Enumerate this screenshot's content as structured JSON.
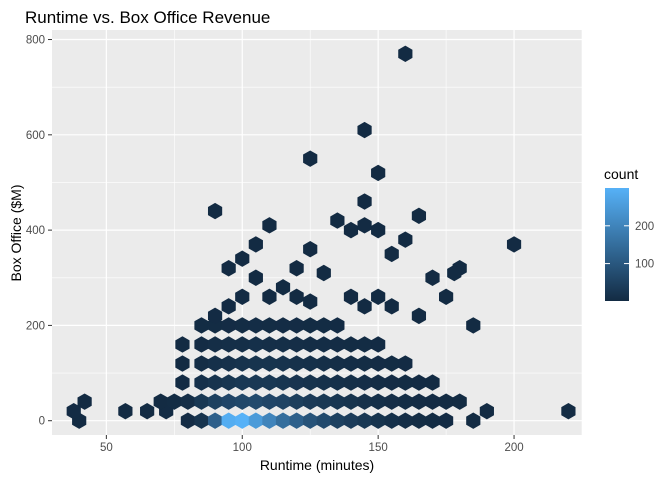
{
  "chart_data": {
    "type": "hexbin",
    "title": "Runtime vs. Box Office Revenue",
    "xlabel": "Runtime (minutes)",
    "ylabel": "Box Office ($M)",
    "xlim": [
      30,
      225
    ],
    "ylim": [
      -30,
      820
    ],
    "x_ticks": [
      50,
      100,
      150,
      200
    ],
    "y_ticks": [
      0,
      200,
      400,
      600,
      800
    ],
    "grid": true,
    "panel_background": "#EBEBEB",
    "grid_color": "#FFFFFF",
    "legend": {
      "title": "count",
      "position": "right",
      "breaks": [
        100,
        200
      ],
      "range": [
        1,
        300
      ],
      "low_color": "#132B43",
      "high_color": "#56B1F7"
    },
    "points": [
      [
        40,
        0,
        1
      ],
      [
        38,
        20,
        2
      ],
      [
        42,
        40,
        1
      ],
      [
        57,
        20,
        1
      ],
      [
        65,
        20,
        1
      ],
      [
        72,
        20,
        2
      ],
      [
        70,
        40,
        1
      ],
      [
        75,
        40,
        3
      ],
      [
        80,
        0,
        4
      ],
      [
        80,
        40,
        8
      ],
      [
        78,
        80,
        2
      ],
      [
        78,
        120,
        1
      ],
      [
        78,
        160,
        1
      ],
      [
        85,
        0,
        20
      ],
      [
        85,
        40,
        30
      ],
      [
        85,
        80,
        12
      ],
      [
        85,
        120,
        6
      ],
      [
        85,
        160,
        4
      ],
      [
        85,
        200,
        3
      ],
      [
        90,
        0,
        120
      ],
      [
        90,
        40,
        50
      ],
      [
        90,
        80,
        20
      ],
      [
        90,
        120,
        12
      ],
      [
        90,
        160,
        8
      ],
      [
        90,
        200,
        3
      ],
      [
        95,
        0,
        290
      ],
      [
        95,
        40,
        60
      ],
      [
        95,
        80,
        25
      ],
      [
        95,
        120,
        15
      ],
      [
        95,
        160,
        10
      ],
      [
        95,
        200,
        4
      ],
      [
        100,
        0,
        300
      ],
      [
        100,
        40,
        65
      ],
      [
        100,
        80,
        30
      ],
      [
        100,
        120,
        18
      ],
      [
        100,
        160,
        10
      ],
      [
        100,
        200,
        5
      ],
      [
        105,
        0,
        250
      ],
      [
        105,
        40,
        70
      ],
      [
        105,
        80,
        30
      ],
      [
        105,
        120,
        20
      ],
      [
        105,
        160,
        12
      ],
      [
        105,
        200,
        6
      ],
      [
        110,
        0,
        200
      ],
      [
        110,
        40,
        60
      ],
      [
        110,
        80,
        30
      ],
      [
        110,
        120,
        20
      ],
      [
        110,
        160,
        10
      ],
      [
        110,
        200,
        5
      ],
      [
        115,
        0,
        150
      ],
      [
        115,
        40,
        55
      ],
      [
        115,
        80,
        25
      ],
      [
        115,
        120,
        18
      ],
      [
        115,
        160,
        10
      ],
      [
        115,
        200,
        4
      ],
      [
        120,
        0,
        120
      ],
      [
        120,
        40,
        45
      ],
      [
        120,
        80,
        22
      ],
      [
        120,
        120,
        15
      ],
      [
        120,
        160,
        8
      ],
      [
        120,
        200,
        4
      ],
      [
        125,
        0,
        90
      ],
      [
        125,
        40,
        35
      ],
      [
        125,
        80,
        18
      ],
      [
        125,
        120,
        12
      ],
      [
        125,
        160,
        6
      ],
      [
        125,
        200,
        3
      ],
      [
        130,
        0,
        70
      ],
      [
        130,
        40,
        30
      ],
      [
        130,
        80,
        15
      ],
      [
        130,
        120,
        10
      ],
      [
        130,
        160,
        6
      ],
      [
        130,
        200,
        3
      ],
      [
        135,
        0,
        50
      ],
      [
        135,
        40,
        25
      ],
      [
        135,
        80,
        12
      ],
      [
        135,
        120,
        8
      ],
      [
        135,
        160,
        4
      ],
      [
        135,
        200,
        2
      ],
      [
        140,
        0,
        40
      ],
      [
        140,
        40,
        20
      ],
      [
        140,
        80,
        10
      ],
      [
        140,
        120,
        6
      ],
      [
        140,
        160,
        3
      ],
      [
        145,
        0,
        30
      ],
      [
        145,
        40,
        15
      ],
      [
        145,
        80,
        8
      ],
      [
        145,
        120,
        5
      ],
      [
        145,
        160,
        3
      ],
      [
        150,
        0,
        20
      ],
      [
        150,
        40,
        12
      ],
      [
        150,
        80,
        6
      ],
      [
        150,
        120,
        4
      ],
      [
        150,
        160,
        2
      ],
      [
        155,
        0,
        12
      ],
      [
        155,
        40,
        8
      ],
      [
        155,
        80,
        4
      ],
      [
        155,
        120,
        3
      ],
      [
        160,
        0,
        8
      ],
      [
        160,
        40,
        5
      ],
      [
        160,
        80,
        3
      ],
      [
        160,
        120,
        2
      ],
      [
        165,
        0,
        5
      ],
      [
        165,
        40,
        4
      ],
      [
        165,
        80,
        2
      ],
      [
        170,
        0,
        3
      ],
      [
        170,
        40,
        2
      ],
      [
        170,
        80,
        1
      ],
      [
        175,
        0,
        2
      ],
      [
        175,
        40,
        1
      ],
      [
        180,
        40,
        1
      ],
      [
        185,
        0,
        1
      ],
      [
        190,
        20,
        1
      ],
      [
        220,
        20,
        1
      ],
      [
        90,
        220,
        2
      ],
      [
        95,
        240,
        2
      ],
      [
        100,
        260,
        2
      ],
      [
        110,
        260,
        1
      ],
      [
        115,
        280,
        1
      ],
      [
        120,
        260,
        1
      ],
      [
        125,
        250,
        1
      ],
      [
        140,
        260,
        1
      ],
      [
        145,
        240,
        1
      ],
      [
        150,
        260,
        1
      ],
      [
        155,
        240,
        1
      ],
      [
        165,
        220,
        1
      ],
      [
        175,
        260,
        1
      ],
      [
        180,
        320,
        1
      ],
      [
        185,
        200,
        1
      ],
      [
        95,
        320,
        1
      ],
      [
        100,
        340,
        1
      ],
      [
        105,
        370,
        1
      ],
      [
        110,
        410,
        1
      ],
      [
        120,
        320,
        1
      ],
      [
        125,
        360,
        1
      ],
      [
        135,
        420,
        1
      ],
      [
        140,
        400,
        1
      ],
      [
        145,
        410,
        1
      ],
      [
        150,
        400,
        1
      ],
      [
        155,
        350,
        1
      ],
      [
        160,
        380,
        1
      ],
      [
        165,
        430,
        1
      ],
      [
        90,
        440,
        1
      ],
      [
        145,
        460,
        1
      ],
      [
        150,
        520,
        1
      ],
      [
        125,
        550,
        1
      ],
      [
        145,
        610,
        1
      ],
      [
        160,
        770,
        1
      ],
      [
        200,
        370,
        1
      ],
      [
        170,
        300,
        1
      ],
      [
        178,
        310,
        1
      ],
      [
        105,
        300,
        1
      ],
      [
        130,
        310,
        1
      ]
    ]
  }
}
